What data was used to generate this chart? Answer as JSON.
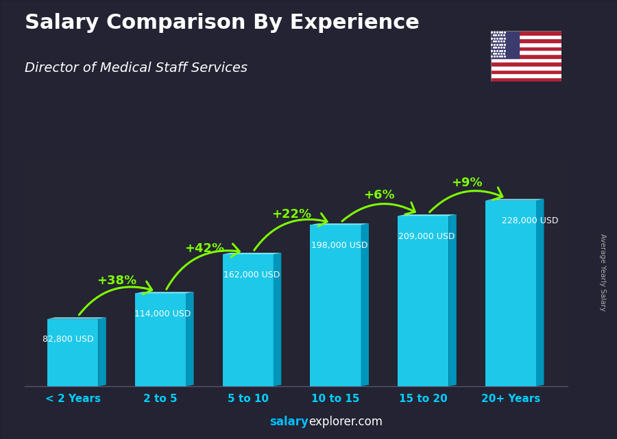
{
  "title": "Salary Comparison By Experience",
  "subtitle": "Director of Medical Staff Services",
  "ylabel": "Average Yearly Salary",
  "categories": [
    "< 2 Years",
    "2 to 5",
    "5 to 10",
    "10 to 15",
    "15 to 20",
    "20+ Years"
  ],
  "values": [
    82800,
    114000,
    162000,
    198000,
    209000,
    228000
  ],
  "labels": [
    "82,800 USD",
    "114,000 USD",
    "162,000 USD",
    "198,000 USD",
    "209,000 USD",
    "228,000 USD"
  ],
  "pct_changes": [
    "+38%",
    "+42%",
    "+22%",
    "+6%",
    "+9%"
  ],
  "bar_color_face": "#1EC8E8",
  "bar_color_top": "#7DE8F5",
  "bar_color_side": "#0095BB",
  "title_color": "#ffffff",
  "subtitle_color": "#ffffff",
  "label_color": "#ffffff",
  "pct_color": "#7FFF00",
  "arrow_color": "#7FFF00",
  "xlabel_color": "#00CFFF",
  "footer_salary_color": "#00BFFF",
  "footer_explorer_color": "#ffffff",
  "footer_com_color": "#ffffff",
  "ylabel_color": "#aaaaaa",
  "ylim": [
    0,
    280000
  ],
  "bg_color": "#3a3a4a"
}
